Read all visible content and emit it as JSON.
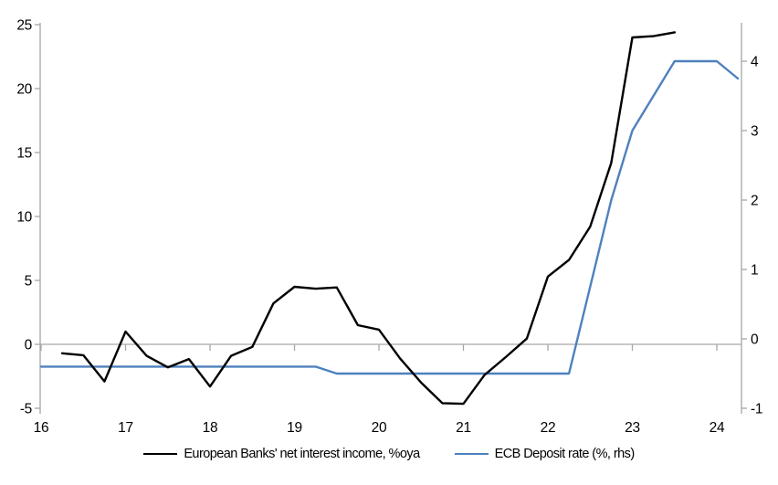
{
  "chart_data": {
    "type": "line",
    "title": "",
    "x": [
      16,
      16.25,
      16.5,
      16.75,
      17,
      17.25,
      17.5,
      17.75,
      18,
      18.25,
      18.5,
      18.75,
      19,
      19.25,
      19.5,
      19.75,
      20,
      20.25,
      20.5,
      20.75,
      21,
      21.25,
      21.5,
      21.75,
      22,
      22.25,
      22.5,
      22.75,
      23,
      23.25,
      23.5,
      23.75,
      24,
      24.25
    ],
    "x_tick_labels": [
      "16",
      "17",
      "18",
      "19",
      "20",
      "21",
      "22",
      "23",
      "24"
    ],
    "x_tick_values": [
      16,
      17,
      18,
      19,
      20,
      21,
      22,
      23,
      24
    ],
    "left_axis": {
      "ticks": [
        -5,
        0,
        5,
        10,
        15,
        20,
        25
      ],
      "range": [
        -5,
        25
      ]
    },
    "right_axis": {
      "ticks": [
        -1,
        0,
        1,
        2,
        3,
        4
      ],
      "range": [
        -1,
        4.5
      ]
    },
    "series": [
      {
        "name": "European Banks' net interest income, %oya",
        "axis": "left",
        "color": "#000000",
        "values": [
          null,
          -0.7,
          -0.85,
          -2.9,
          1.0,
          -0.9,
          -1.8,
          -1.15,
          -3.3,
          -0.9,
          -0.2,
          3.2,
          4.5,
          4.35,
          4.45,
          1.5,
          1.15,
          -1.1,
          -3.0,
          -4.6,
          -4.65,
          -2.4,
          -1.0,
          0.45,
          5.3,
          6.6,
          9.2,
          14.2,
          24.0,
          24.1,
          24.4,
          null,
          null,
          null
        ]
      },
      {
        "name": "ECB Deposit rate (%, rhs)",
        "axis": "right",
        "color": "#4E81BD",
        "values": [
          -0.4,
          -0.4,
          -0.4,
          -0.4,
          -0.4,
          -0.4,
          -0.4,
          -0.4,
          -0.4,
          -0.4,
          -0.4,
          -0.4,
          -0.4,
          -0.4,
          -0.5,
          -0.5,
          -0.5,
          -0.5,
          -0.5,
          -0.5,
          -0.5,
          -0.5,
          -0.5,
          -0.5,
          -0.5,
          -0.5,
          0.75,
          2.0,
          3.0,
          3.5,
          4.0,
          4.0,
          4.0,
          3.75
        ]
      }
    ],
    "grid": "zero-line-only",
    "legend_position": "bottom"
  },
  "style": {
    "axis_color": "#A6A6A6",
    "zero_line_color": "#A8A8A8",
    "series1_color": "#000000",
    "series2_color": "#4E81BD"
  }
}
